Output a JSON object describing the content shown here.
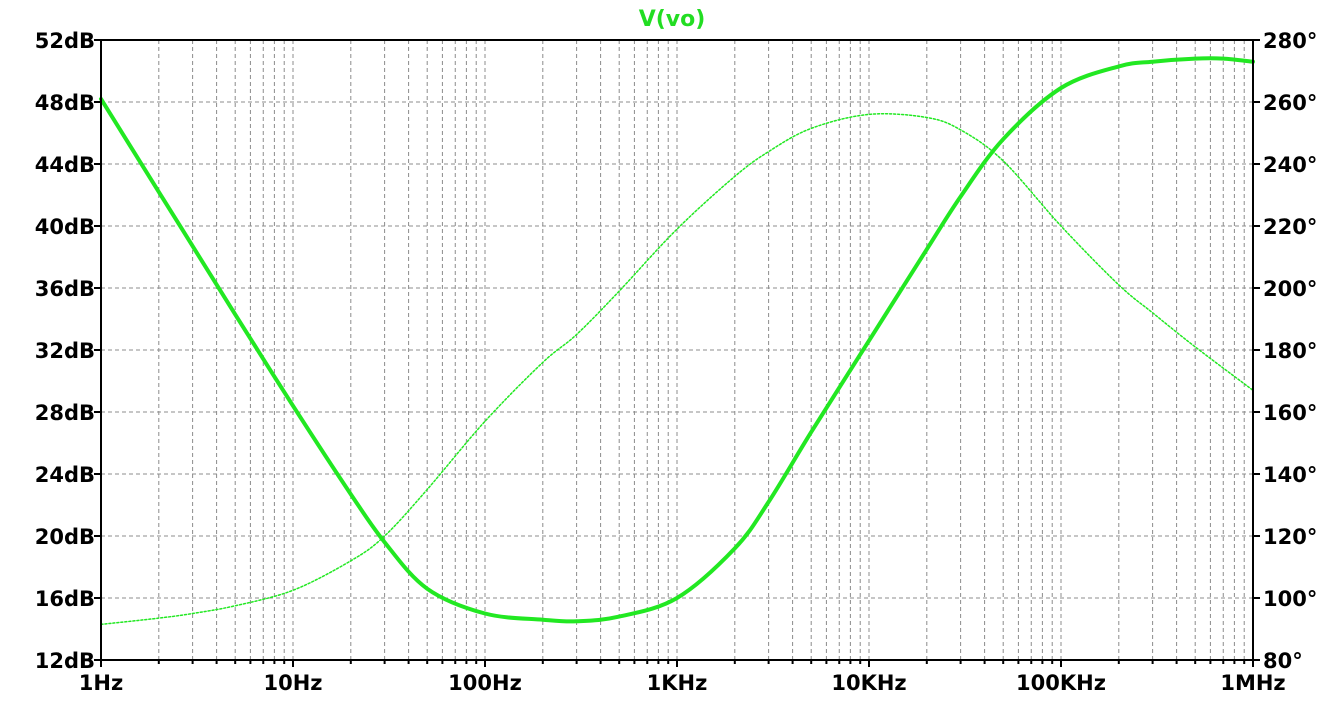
{
  "chart_data": {
    "type": "line",
    "title": "V(vo)",
    "x_scale": "log",
    "xlim": [
      1,
      1000000
    ],
    "ylim_left": [
      12,
      52
    ],
    "ylim_right": [
      80,
      280
    ],
    "grid": true,
    "x_ticks": [
      "1Hz",
      "10Hz",
      "100Hz",
      "1KHz",
      "10KHz",
      "100KHz",
      "1MHz"
    ],
    "y_ticks_left": [
      "12dB",
      "16dB",
      "20dB",
      "24dB",
      "28dB",
      "32dB",
      "36dB",
      "40dB",
      "44dB",
      "48dB",
      "52dB"
    ],
    "y_ticks_right": [
      "80°",
      "100°",
      "120°",
      "140°",
      "160°",
      "180°",
      "200°",
      "220°",
      "240°",
      "260°",
      "280°"
    ],
    "colors": {
      "trace": "#22e822",
      "title": "#22dd22",
      "grid": "#8c8c8c",
      "frame": "#000000",
      "background": "#ffffff"
    },
    "series": [
      {
        "axis": "left",
        "style": "solid",
        "x": [
          1,
          2,
          3,
          5,
          10,
          20,
          30,
          50,
          100,
          200,
          300,
          500,
          1000,
          2000,
          3000,
          5000,
          10000,
          20000,
          30000,
          50000,
          100000,
          200000,
          300000,
          500000,
          700000,
          1000000
        ],
        "values": [
          48.2,
          42.2,
          38.7,
          34.3,
          28.4,
          22.7,
          19.6,
          16.6,
          15.0,
          14.6,
          14.5,
          14.8,
          16.0,
          19.2,
          22.2,
          26.7,
          32.6,
          38.5,
          41.9,
          45.6,
          48.9,
          50.3,
          50.6,
          50.8,
          50.8,
          50.6
        ]
      },
      {
        "axis": "right",
        "style": "dotted",
        "x": [
          1,
          2,
          3,
          5,
          10,
          20,
          30,
          50,
          100,
          200,
          300,
          500,
          1000,
          2000,
          3000,
          5000,
          10000,
          20000,
          30000,
          50000,
          100000,
          200000,
          300000,
          500000,
          1000000
        ],
        "values": [
          91.5,
          93.5,
          95,
          97.5,
          102.5,
          112,
          120,
          135,
          157,
          176,
          185,
          199,
          219,
          236,
          244,
          251.5,
          256,
          255,
          251,
          241,
          220,
          201,
          192,
          181,
          167
        ]
      }
    ]
  }
}
